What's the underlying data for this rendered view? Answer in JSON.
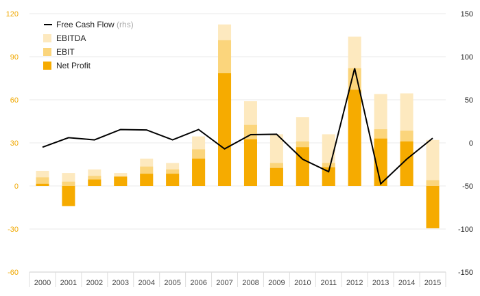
{
  "chart_data": {
    "type": "bar",
    "categories": [
      "2000",
      "2001",
      "2002",
      "2003",
      "2004",
      "2005",
      "2006",
      "2007",
      "2008",
      "2009",
      "2010",
      "2011",
      "2012",
      "2013",
      "2014",
      "2015"
    ],
    "series": [
      {
        "name": "EBITDA",
        "axis": "left",
        "color": "#fde9bf",
        "values": [
          10.5,
          9,
          11.5,
          9,
          19,
          16,
          34.5,
          112.5,
          59,
          36,
          48,
          36,
          104,
          64,
          64.5,
          32
        ]
      },
      {
        "name": "EBIT",
        "axis": "left",
        "color": "#fbd57c",
        "values": [
          6,
          3,
          7,
          6.5,
          13.5,
          11.5,
          25.5,
          101.5,
          42.5,
          16,
          31,
          16,
          82,
          39.5,
          38.5,
          4
        ]
      },
      {
        "name": "Net Profit",
        "axis": "left",
        "color": "#f6ab00",
        "values": [
          1.5,
          -14,
          4.5,
          6.5,
          8.5,
          8.5,
          19,
          78.5,
          32.5,
          12.5,
          27,
          13,
          67,
          33,
          31,
          -29.5
        ]
      },
      {
        "name": "Free Cash Flow",
        "suffix": "(rhs)",
        "axis": "right",
        "type": "line",
        "color": "#000000",
        "values": [
          -5,
          6,
          3.5,
          15.5,
          15,
          3.5,
          15.5,
          -7,
          9.5,
          10,
          -19,
          -33.5,
          86.5,
          -47.5,
          -19,
          5.5
        ]
      }
    ],
    "ylim": [
      -60,
      120
    ],
    "yticks": [
      "120",
      "90",
      "60",
      "30",
      "0",
      "-30",
      "-60"
    ],
    "y2lim": [
      -150,
      150
    ],
    "y2ticks": [
      "150",
      "100",
      "50",
      "0",
      "-50",
      "-100",
      "-150"
    ],
    "grid": true,
    "legend_position": "top-left",
    "left_axis_color": "#f0a800",
    "right_axis_color": "#222222",
    "grid_color": "#e8e8e8"
  }
}
